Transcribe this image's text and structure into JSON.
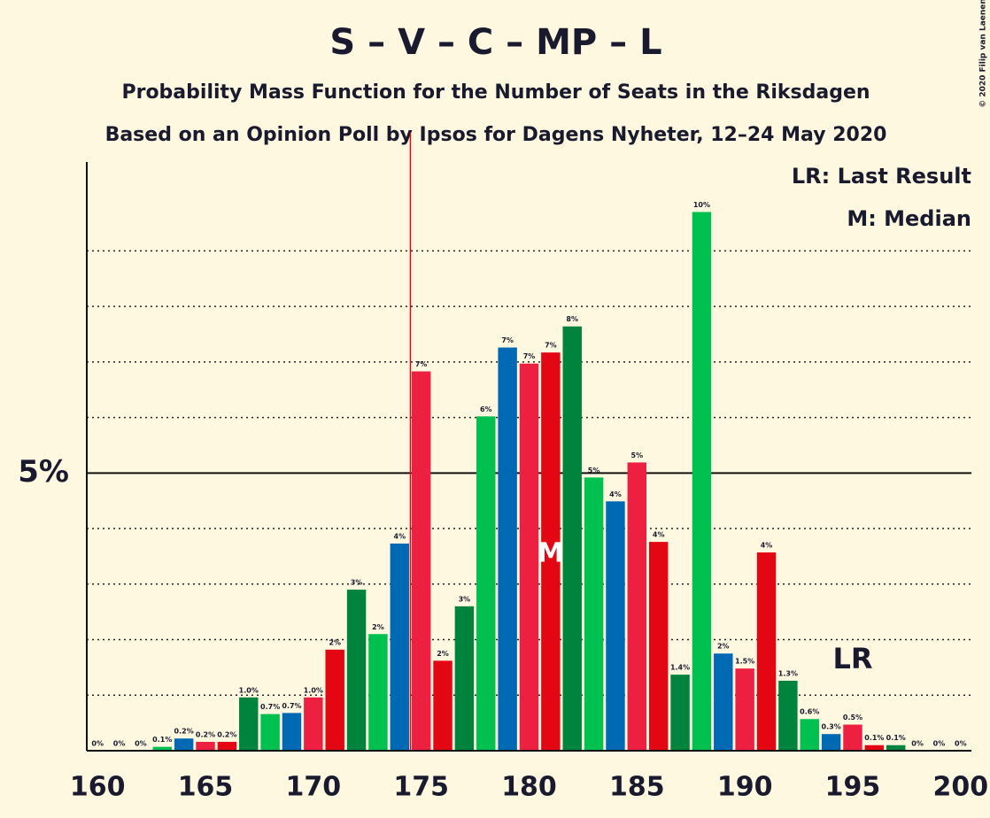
{
  "chart_data": {
    "type": "bar",
    "title": "S – V – C – MP – L",
    "subtitle": "Probability Mass Function for the Number of Seats in the Riksdagen",
    "subtitle2": "Based on an Opinion Poll by Ipsos for Dagens Nyheter, 12–24 May 2020",
    "copyright": "© 2020 Filip van Laenen",
    "legend": [
      "LR: Last Result",
      "M: Median"
    ],
    "median": 181,
    "median_label": "M",
    "last_result": 195,
    "last_result_label": "LR",
    "majority": 175,
    "x": [
      160,
      161,
      162,
      163,
      164,
      165,
      166,
      167,
      168,
      169,
      170,
      171,
      172,
      173,
      174,
      175,
      176,
      177,
      178,
      179,
      180,
      181,
      182,
      183,
      184,
      185,
      186,
      187,
      188,
      189,
      190,
      191,
      192,
      193,
      194,
      195,
      196,
      197,
      198,
      199,
      200
    ],
    "values": [
      0,
      0,
      0,
      0.07,
      0.22,
      0.16,
      0.16,
      0.96,
      0.66,
      0.68,
      0.96,
      1.82,
      2.9,
      2.1,
      3.73,
      6.83,
      1.62,
      2.6,
      6.02,
      7.26,
      6.97,
      7.17,
      7.64,
      4.92,
      4.49,
      5.19,
      3.76,
      1.37,
      9.7,
      1.75,
      1.48,
      3.57,
      1.26,
      0.57,
      0.3,
      0.47,
      0.1,
      0.1,
      0,
      0,
      0
    ],
    "value_labels": [
      "0%",
      "0%",
      "0%",
      "0.1%",
      "0.2%",
      "0.2%",
      "0.2%",
      "1.0%",
      "0.7%",
      "0.7%",
      "1.0%",
      "2%",
      "3%",
      "2%",
      "4%",
      "7%",
      "2%",
      "3%",
      "6%",
      "7%",
      "7%",
      "7%",
      "8%",
      "5%",
      "4%",
      "5%",
      "4%",
      "1.4%",
      "10%",
      "2%",
      "1.5%",
      "4%",
      "1.3%",
      "0.6%",
      "0.3%",
      "0.5%",
      "0.1%",
      "0.1%",
      "0%",
      "0%",
      "0%"
    ],
    "colors": [
      "#e30613",
      "#00843d",
      "#00c050",
      "#00c050",
      "#0069b4",
      "#ee2041",
      "#e30613",
      "#00843d",
      "#00c050",
      "#0069b4",
      "#ee2041",
      "#e30613",
      "#00843d",
      "#00c050",
      "#0069b4",
      "#ee2041",
      "#e30613",
      "#00843d",
      "#00c050",
      "#0069b4",
      "#ee2041",
      "#e30613",
      "#00843d",
      "#00c050",
      "#0069b4",
      "#ee2041",
      "#e30613",
      "#00843d",
      "#00c050",
      "#0069b4",
      "#ee2041",
      "#e30613",
      "#00843d",
      "#00c050",
      "#0069b4",
      "#ee2041",
      "#e30613",
      "#00843d",
      "#00c050",
      "#0069b4",
      "#ee2041"
    ],
    "xlim": [
      159.5,
      200.5
    ],
    "ylim": [
      0,
      10.6
    ],
    "xticks": [
      160,
      165,
      170,
      175,
      180,
      185,
      190,
      195,
      200
    ],
    "yticks": [
      {
        "value": 5,
        "label": "5%"
      }
    ],
    "minor_gridlines": [
      1,
      2,
      3,
      4,
      6,
      7,
      8,
      9
    ]
  }
}
